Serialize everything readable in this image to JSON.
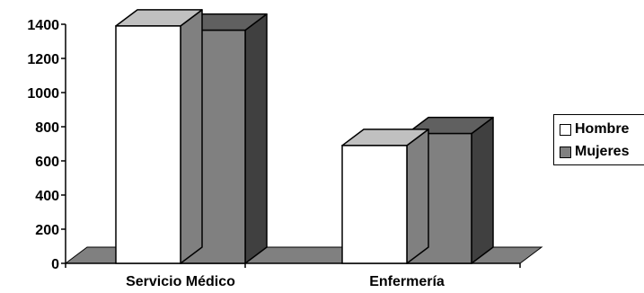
{
  "chart_data": {
    "type": "bar",
    "categories": [
      "Servicio Médico",
      "Enfermería"
    ],
    "series": [
      {
        "name": "Hombre",
        "values": [
          1390,
          690
        ],
        "color": "#ffffff",
        "top_color": "#c0c0c0",
        "side_color": "#808080"
      },
      {
        "name": "Mujeres",
        "values": [
          1365,
          760
        ],
        "color": "#808080",
        "top_color": "#606060",
        "side_color": "#404040"
      }
    ],
    "ylim": [
      0,
      1400
    ],
    "yticks": [
      "0",
      "200",
      "400",
      "600",
      "800",
      "1000",
      "1200",
      "1400"
    ],
    "floor_color": "#808080",
    "legend_position": "right",
    "grid": false,
    "three_d": true
  }
}
